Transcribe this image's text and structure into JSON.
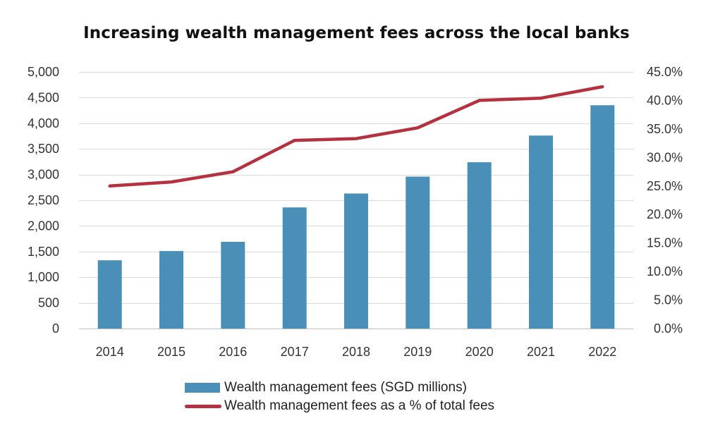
{
  "chart_data": {
    "type": "bar",
    "title": "Increasing wealth management fees across the local banks",
    "categories": [
      "2014",
      "2015",
      "2016",
      "2017",
      "2018",
      "2019",
      "2020",
      "2021",
      "2022"
    ],
    "series": [
      {
        "name": "Wealth management fees (SGD millions)",
        "type": "bar",
        "axis": "left",
        "color": "#4a8fb8",
        "values": [
          1330,
          1510,
          1690,
          2360,
          2630,
          2960,
          3240,
          3760,
          4350
        ]
      },
      {
        "name": "Wealth management fees as a % of total fees",
        "type": "line",
        "axis": "right",
        "color": "#b5313f",
        "values": [
          25.0,
          25.7,
          27.5,
          33.0,
          33.3,
          35.2,
          40.0,
          40.4,
          42.4
        ]
      }
    ],
    "y_left": {
      "range": [
        0,
        5000
      ],
      "ticks": [
        "0",
        "500",
        "1,000",
        "1,500",
        "2,000",
        "2,500",
        "3,000",
        "3,500",
        "4,000",
        "4,500",
        "5,000"
      ]
    },
    "y_right": {
      "range": [
        0,
        45
      ],
      "ticks": [
        "0.0%",
        "5.0%",
        "10.0%",
        "15.0%",
        "20.0%",
        "25.0%",
        "30.0%",
        "35.0%",
        "40.0%",
        "45.0%"
      ]
    },
    "grid": true,
    "legend_position": "bottom"
  }
}
